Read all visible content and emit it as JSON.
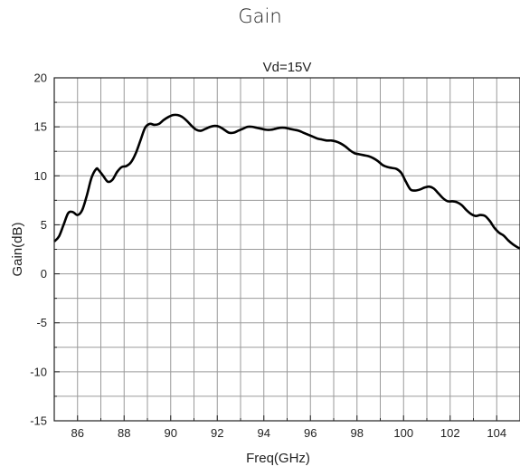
{
  "page_heading": "Gain",
  "chart_data": {
    "type": "line",
    "title": "Vd=15V",
    "xlabel": "Freq(GHz)",
    "ylabel": "Gain(dB)",
    "xlim": [
      85,
      105
    ],
    "ylim": [
      -15,
      20
    ],
    "xticks": [
      86,
      88,
      90,
      92,
      94,
      96,
      98,
      100,
      102,
      104
    ],
    "yticks": [
      -15,
      -10,
      -5,
      0,
      5,
      10,
      15,
      20
    ],
    "grid": true,
    "line_color": "#000000",
    "series": [
      {
        "x": [
          85.0,
          85.2,
          85.4,
          85.6,
          85.8,
          86.0,
          86.2,
          86.4,
          86.6,
          86.8,
          86.9,
          87.1,
          87.3,
          87.5,
          87.7,
          87.9,
          88.1,
          88.3,
          88.5,
          88.7,
          88.9,
          89.1,
          89.3,
          89.5,
          89.7,
          89.9,
          90.1,
          90.3,
          90.5,
          90.7,
          90.9,
          91.1,
          91.3,
          91.5,
          91.7,
          91.9,
          92.1,
          92.3,
          92.5,
          92.7,
          92.9,
          93.1,
          93.3,
          93.5,
          93.7,
          93.9,
          94.1,
          94.3,
          94.5,
          94.7,
          94.9,
          95.1,
          95.3,
          95.5,
          95.7,
          95.9,
          96.1,
          96.3,
          96.5,
          96.7,
          96.9,
          97.1,
          97.3,
          97.5,
          97.7,
          97.9,
          98.1,
          98.3,
          98.5,
          98.7,
          98.9,
          99.1,
          99.3,
          99.5,
          99.7,
          99.9,
          100.1,
          100.3,
          100.5,
          100.7,
          100.9,
          101.1,
          101.3,
          101.5,
          101.7,
          101.9,
          102.1,
          102.3,
          102.5,
          102.7,
          102.9,
          103.1,
          103.3,
          103.5,
          103.7,
          103.9,
          104.1,
          104.3,
          104.5,
          104.7,
          104.9,
          105.0
        ],
        "y": [
          3.3,
          3.8,
          5.0,
          6.2,
          6.3,
          6.0,
          6.5,
          8.0,
          9.8,
          10.7,
          10.6,
          10.0,
          9.4,
          9.6,
          10.4,
          10.9,
          11.0,
          11.4,
          12.3,
          13.6,
          14.9,
          15.3,
          15.2,
          15.3,
          15.7,
          16.0,
          16.2,
          16.2,
          16.0,
          15.6,
          15.1,
          14.7,
          14.6,
          14.8,
          15.0,
          15.1,
          15.0,
          14.7,
          14.4,
          14.4,
          14.6,
          14.8,
          15.0,
          15.0,
          14.9,
          14.8,
          14.7,
          14.7,
          14.8,
          14.9,
          14.9,
          14.8,
          14.7,
          14.6,
          14.4,
          14.2,
          14.0,
          13.8,
          13.7,
          13.6,
          13.6,
          13.5,
          13.3,
          13.0,
          12.6,
          12.3,
          12.2,
          12.1,
          12.0,
          11.8,
          11.5,
          11.1,
          10.9,
          10.8,
          10.7,
          10.3,
          9.4,
          8.6,
          8.5,
          8.6,
          8.8,
          8.9,
          8.7,
          8.2,
          7.7,
          7.4,
          7.4,
          7.3,
          7.0,
          6.5,
          6.1,
          5.9,
          6.0,
          5.9,
          5.4,
          4.7,
          4.2,
          3.9,
          3.4,
          3.0,
          2.7,
          2.6
        ]
      }
    ]
  }
}
